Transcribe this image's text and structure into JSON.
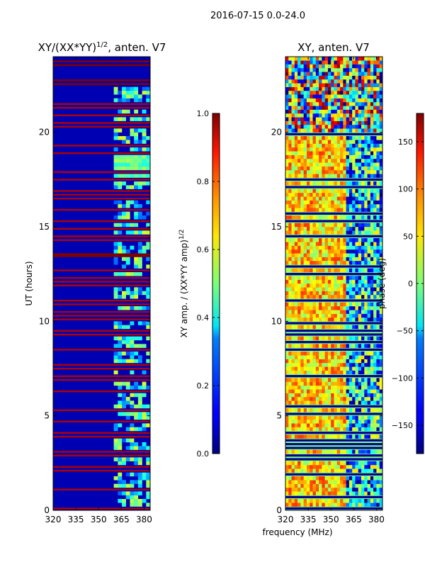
{
  "figure": {
    "suptitle": "2016-07-15 0.0-24.0",
    "xlabel": "frequency (MHz)"
  },
  "chart_data": [
    {
      "type": "heatmap",
      "title": "XY/(XX*YY)",
      "title_sup": "1/2",
      "title_suffix": ", anten. V7",
      "xlabel": "",
      "ylabel": "UT (hours)",
      "xlim": [
        320,
        384
      ],
      "ylim": [
        0,
        24
      ],
      "xticks": [
        320,
        335,
        350,
        365,
        380
      ],
      "xtick_labels": [
        "320",
        "335",
        "350",
        "365",
        "380"
      ],
      "yticks": [
        0,
        5,
        10,
        15,
        20
      ],
      "ytick_labels": [
        "0",
        "5",
        "10",
        "15",
        "20"
      ],
      "colormap": "jet",
      "colorbar": {
        "label": "XY amp. / (XX*YY amp)",
        "label_sup": "1/2",
        "range": [
          0.0,
          1.0
        ],
        "ticks": [
          0.0,
          0.2,
          0.4,
          0.6,
          0.8,
          1.0
        ],
        "tick_labels": [
          "0.0",
          "0.2",
          "0.4",
          "0.6",
          "0.8",
          "1.0"
        ]
      },
      "features": {
        "background_value": 0.05,
        "top_block_hours": [
          22.3,
          24.0
        ],
        "top_block_value": 0.03,
        "high_band_hours": [
          13.3,
          13.7
        ],
        "high_band_value": 1.0,
        "signal_freq_mhz": [
          360,
          382
        ],
        "signal_value_range": [
          0.2,
          0.6
        ],
        "bright_patch_hours": [
          17.5,
          18.8
        ],
        "bright_patch_value": 0.5
      }
    },
    {
      "type": "heatmap",
      "title": "XY, anten. V7",
      "xlabel": "",
      "ylabel": "",
      "xlim": [
        320,
        384
      ],
      "ylim": [
        0,
        24
      ],
      "xticks": [
        320,
        335,
        350,
        365,
        380
      ],
      "xtick_labels": [
        "320",
        "335",
        "350",
        "365",
        "380"
      ],
      "yticks": [
        0,
        5,
        10,
        15,
        20
      ],
      "ytick_labels": [
        "0",
        "5",
        "10",
        "15",
        "20"
      ],
      "colormap": "jet",
      "colorbar": {
        "label": "phase (deg)",
        "range": [
          -180,
          180
        ],
        "ticks": [
          -150,
          -100,
          -50,
          0,
          50,
          100,
          150
        ],
        "tick_labels": [
          "−150",
          "−100",
          "−50",
          "0",
          "50",
          "100",
          "150"
        ]
      },
      "features": {
        "noisy_region_hours": [
          20.0,
          24.0
        ],
        "freq_split_mhz": 360,
        "low_freq_phase_deg": [
          0,
          120
        ],
        "high_freq_phase_deg": [
          -180,
          60
        ]
      }
    }
  ]
}
